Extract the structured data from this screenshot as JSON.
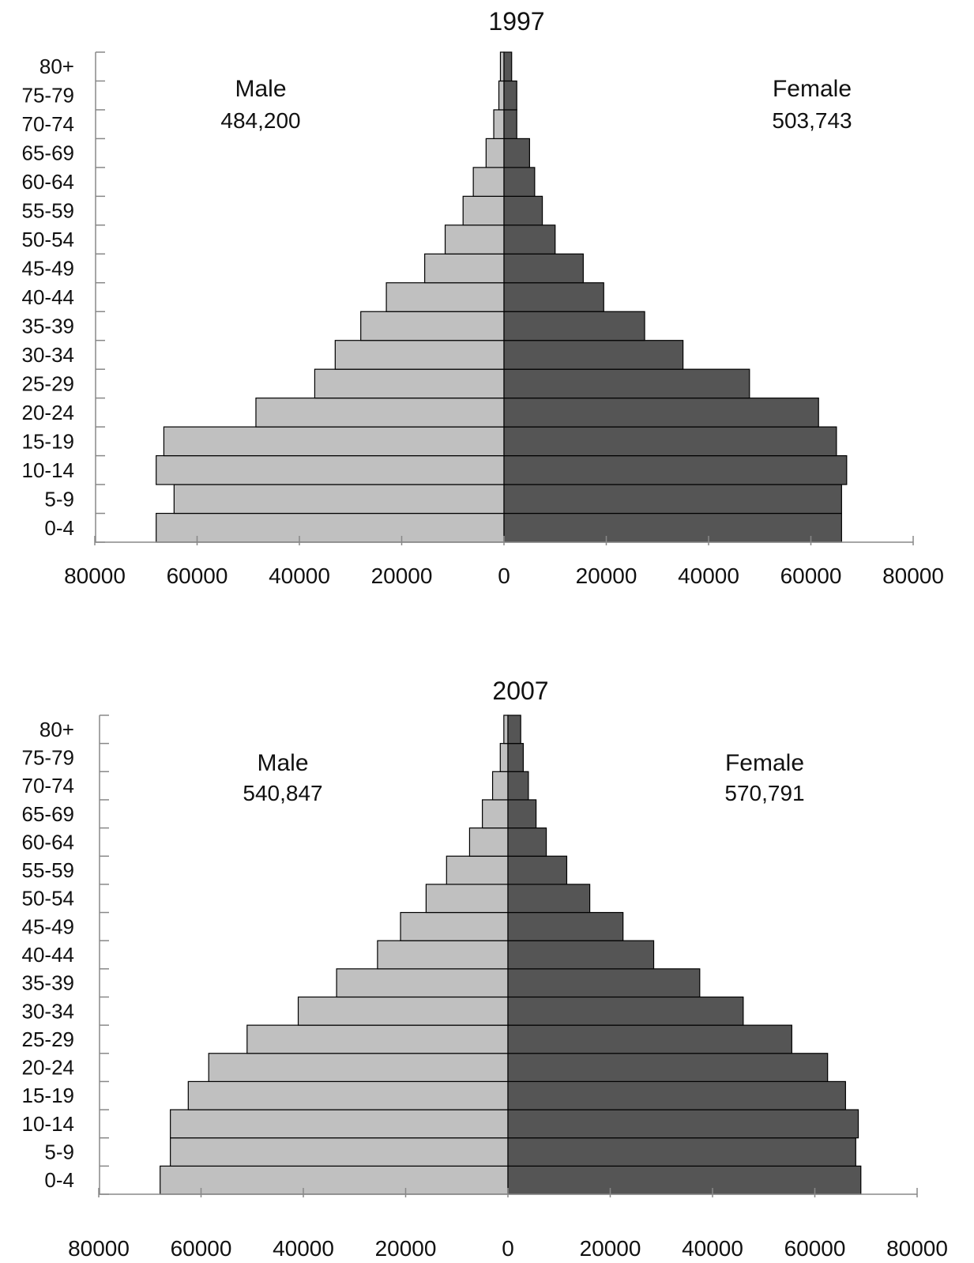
{
  "chart_data": [
    {
      "type": "bar",
      "orientation": "horizontal",
      "title": "1997",
      "categories": [
        "0-4",
        "5-9",
        "10-14",
        "15-19",
        "20-24",
        "25-29",
        "30-34",
        "35-39",
        "40-44",
        "45-49",
        "50-54",
        "55-59",
        "60-64",
        "65-69",
        "70-74",
        "75-79",
        "80+"
      ],
      "series": [
        {
          "name": "Male",
          "values": [
            68000,
            64500,
            68000,
            66500,
            48500,
            37000,
            33000,
            28000,
            23000,
            15500,
            11500,
            8000,
            6000,
            3500,
            2000,
            1000,
            700
          ],
          "color": "#c0c0c0"
        },
        {
          "name": "Female",
          "values": [
            66000,
            66000,
            67000,
            65000,
            61500,
            48000,
            35000,
            27500,
            19500,
            15500,
            10000,
            7500,
            6000,
            5000,
            2500,
            2500,
            1500
          ],
          "color": "#555555"
        }
      ],
      "annotations": [
        {
          "label": "Male",
          "value": "484,200"
        },
        {
          "label": "Female",
          "value": "503,743"
        }
      ],
      "xticks": [
        "80000",
        "60000",
        "40000",
        "20000",
        "0",
        "20000",
        "40000",
        "60000",
        "80000"
      ],
      "xlim": [
        -80000,
        80000
      ],
      "grid": false,
      "legend": "none"
    },
    {
      "type": "bar",
      "orientation": "horizontal",
      "title": "2007",
      "categories": [
        "0-4",
        "5-9",
        "10-14",
        "15-19",
        "20-24",
        "25-29",
        "30-34",
        "35-39",
        "40-44",
        "45-49",
        "50-54",
        "55-59",
        "60-64",
        "65-69",
        "70-74",
        "75-79",
        "80+"
      ],
      "series": [
        {
          "name": "Male",
          "values": [
            68000,
            66000,
            66000,
            62500,
            58500,
            51000,
            41000,
            33500,
            25500,
            21000,
            16000,
            12000,
            7500,
            5000,
            3000,
            1500,
            800
          ],
          "color": "#c0c0c0"
        },
        {
          "name": "Female",
          "values": [
            69000,
            68000,
            68500,
            66000,
            62500,
            55500,
            46000,
            37500,
            28500,
            22500,
            16000,
            11500,
            7500,
            5500,
            4000,
            3000,
            2500
          ],
          "color": "#555555"
        }
      ],
      "annotations": [
        {
          "label": "Male",
          "value": "540,847"
        },
        {
          "label": "Female",
          "value": "570,791"
        }
      ],
      "xticks": [
        "80000",
        "60000",
        "40000",
        "20000",
        "0",
        "20000",
        "40000",
        "60000",
        "80000"
      ],
      "xlim": [
        -80000,
        80000
      ],
      "grid": false,
      "legend": "none"
    }
  ]
}
